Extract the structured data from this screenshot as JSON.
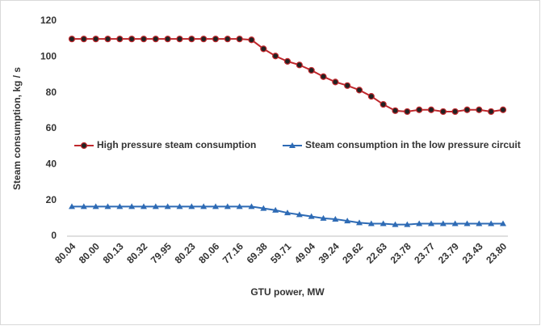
{
  "chart_data": {
    "type": "line",
    "y_label": "Steam consumption, kg / s",
    "x_label": "GTU power, MW",
    "categories": [
      "80.04",
      null,
      "80.00",
      null,
      "80.13",
      null,
      "80.32",
      null,
      "79.95",
      null,
      "80.23",
      null,
      "80.06",
      null,
      "77.16",
      null,
      "69.38",
      null,
      "59.71",
      null,
      "49.04",
      null,
      "39.24",
      null,
      "29.62",
      null,
      "22.63",
      null,
      "23.78",
      null,
      "23.77",
      null,
      "23.79",
      null,
      "23.43",
      null,
      "23.80"
    ],
    "series": [
      {
        "name": "High pressure steam consumption",
        "color": "#c0282d",
        "marker": "circle",
        "values": [
          110,
          110,
          110,
          110,
          110,
          110,
          110,
          110,
          110,
          110,
          110,
          110,
          110,
          110,
          110,
          109.5,
          104.5,
          100.5,
          97.5,
          95.5,
          92.5,
          89,
          86,
          84,
          81.5,
          78,
          73.5,
          70,
          69.5,
          70.5,
          70.5,
          69.5,
          69.5,
          70.5,
          70.5,
          69.5,
          70.5
        ]
      },
      {
        "name": "Steam consumption in the low pressure circuit",
        "color": "#2e6bb5",
        "marker": "triangle",
        "values": [
          16.5,
          16.5,
          16.5,
          16.5,
          16.5,
          16.5,
          16.5,
          16.5,
          16.5,
          16.5,
          16.5,
          16.5,
          16.5,
          16.5,
          16.5,
          16.5,
          15.5,
          14.5,
          13,
          12,
          11,
          10,
          9.5,
          8.5,
          7.5,
          7,
          7,
          6.5,
          6.5,
          7,
          7,
          7,
          7,
          7,
          7,
          7,
          7
        ]
      }
    ],
    "ylim": [
      0,
      120
    ],
    "yticks": [
      0,
      20,
      40,
      60,
      80,
      100,
      120
    ],
    "grid": false,
    "legend": "center"
  }
}
